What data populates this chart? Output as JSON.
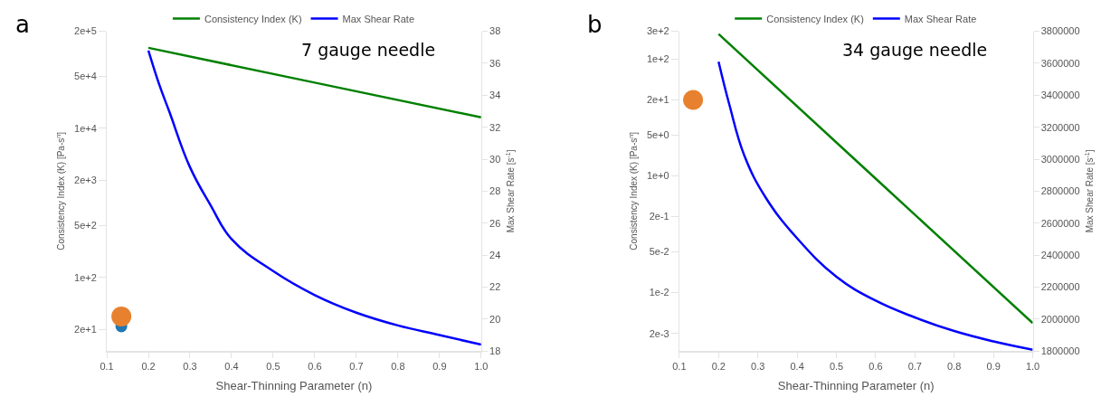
{
  "chart_data": [
    {
      "type": "line",
      "xlabel": "Shear-Thinning Parameter (n)",
      "ylabel": "Consistency Index (K) [Pa-s$^{n}$]",
      "y2label": "Max Shear Rate [s$^{-1}$]",
      "annotations": [
        "a",
        "7 gauge needle"
      ],
      "log": "y",
      "grid": false,
      "legend": "top",
      "xlim": [
        0.1,
        1.0
      ],
      "xticks": [
        0.1,
        0.2,
        0.3,
        0.4,
        0.5,
        0.6,
        0.7,
        0.8,
        0.9,
        {
          "value": 1.0,
          "label": "1.0"
        }
      ],
      "ylim": [
        10.3,
        200000
      ],
      "yticks": [
        {
          "value": 200000,
          "label": "2e+5"
        },
        {
          "value": 50000,
          "label": "5e+4"
        },
        {
          "value": 10000,
          "label": "1e+4"
        },
        {
          "value": 2000,
          "label": "2e+3"
        },
        {
          "value": 500,
          "label": "5e+2"
        },
        {
          "value": 100,
          "label": "1e+2"
        },
        {
          "value": 20,
          "label": "2e+1"
        }
      ],
      "y2lim": [
        18,
        38
      ],
      "y2ticks": [
        18,
        20,
        22,
        24,
        26,
        28,
        30,
        32,
        34,
        36,
        38
      ],
      "series": [
        {
          "name": "Consistency Index (K)",
          "color": "#008000",
          "marker": "none",
          "x": [
            0.2,
            0.6,
            1.0
          ],
          "values": [
            120000,
            41000,
            14000
          ]
        },
        {
          "name": "Max Shear Rate",
          "color": "#0000ff",
          "marker": "none",
          "axis": "y2",
          "x": [
            0.2,
            0.227,
            0.25,
            0.3,
            0.35,
            0.4,
            0.5,
            0.6,
            0.7,
            0.8,
            0.9,
            1.0
          ],
          "values": [
            36.8,
            34.6,
            33.0,
            29.5,
            27.1,
            25.0,
            23.0,
            21.5,
            20.4,
            19.6,
            19.0,
            18.4
          ]
        },
        {
          "type": "bubble",
          "color": "#1f77b4",
          "marker": "circle",
          "x": [
            0.135
          ],
          "values": [
            22
          ],
          "sizes": [
            0.35
          ]
        },
        {
          "type": "bubble",
          "color": "#e8812f",
          "marker": "circle",
          "x": [
            0.135
          ],
          "values": [
            30
          ],
          "sizes": [
            1
          ]
        }
      ]
    },
    {
      "type": "line",
      "xlabel": "Shear-Thinning Parameter (n)",
      "ylabel": "Consistency Index (K) [Pa-s$^{n}$]",
      "y2label": "Max Shear Rate [s$^{-1}$]",
      "annotations": [
        "b",
        "34 gauge needle"
      ],
      "log": "y",
      "grid": false,
      "legend": "top",
      "xlim": [
        0.1,
        1.0
      ],
      "xticks": [
        0.1,
        0.2,
        0.3,
        0.4,
        0.5,
        0.6,
        0.7,
        0.8,
        0.9,
        {
          "value": 1.0,
          "label": "1.0"
        }
      ],
      "ylim": [
        0.001,
        300
      ],
      "yticks": [
        {
          "value": 300,
          "label": "3e+2"
        },
        {
          "value": 100,
          "label": "1e+2"
        },
        {
          "value": 20,
          "label": "2e+1"
        },
        {
          "value": 5,
          "label": "5e+0"
        },
        {
          "value": 1,
          "label": "1e+0"
        },
        {
          "value": 0.2,
          "label": "2e-1"
        },
        {
          "value": 0.05,
          "label": "5e-2"
        },
        {
          "value": 0.01,
          "label": "1e-2"
        },
        {
          "value": 0.002,
          "label": "2e-3"
        }
      ],
      "y2lim": [
        1800000,
        3800000
      ],
      "y2ticks": [
        1800000,
        2000000,
        2200000,
        2400000,
        2600000,
        2800000,
        3000000,
        3200000,
        3400000,
        3600000,
        3800000
      ],
      "series": [
        {
          "name": "Consistency Index (K)",
          "color": "#008000",
          "marker": "none",
          "x": [
            0.2,
            0.6,
            1.0
          ],
          "values": [
            270,
            0.9,
            0.003
          ]
        },
        {
          "name": "Max Shear Rate",
          "color": "#0000ff",
          "marker": "none",
          "axis": "y2",
          "x": [
            0.2,
            0.227,
            0.266,
            0.32,
            0.4,
            0.5,
            0.6,
            0.7,
            0.8,
            0.9,
            1.0
          ],
          "values": [
            3610000,
            3345000,
            3020000,
            2760000,
            2505000,
            2265000,
            2115000,
            2010000,
            1925000,
            1860000,
            1808000
          ]
        },
        {
          "type": "bubble",
          "color": "#e8812f",
          "marker": "circle",
          "x": [
            0.135
          ],
          "values": [
            20
          ],
          "sizes": [
            1
          ]
        }
      ]
    }
  ]
}
